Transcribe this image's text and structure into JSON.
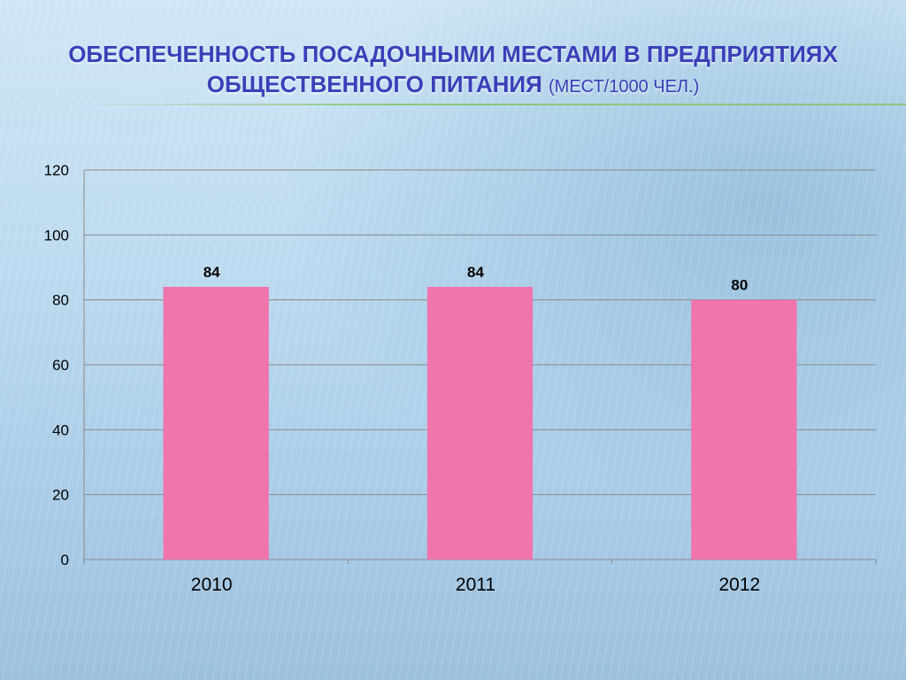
{
  "slide": {
    "title_main": "Обеспеченность посадочными местами в предприятиях общественного питания",
    "title_unit": "(мест/1000 чел.)"
  },
  "chart_data": {
    "type": "bar",
    "categories": [
      "2010",
      "2011",
      "2012"
    ],
    "values": [
      84,
      84,
      80
    ],
    "data_labels": [
      "84",
      "84",
      "80"
    ],
    "ylim": [
      0,
      120
    ],
    "yticks": [
      0,
      20,
      40,
      60,
      80,
      100,
      120
    ],
    "grid": true,
    "legend": "none",
    "bar_color": "#f075ad",
    "gridline_color": "#8a8a8a"
  }
}
